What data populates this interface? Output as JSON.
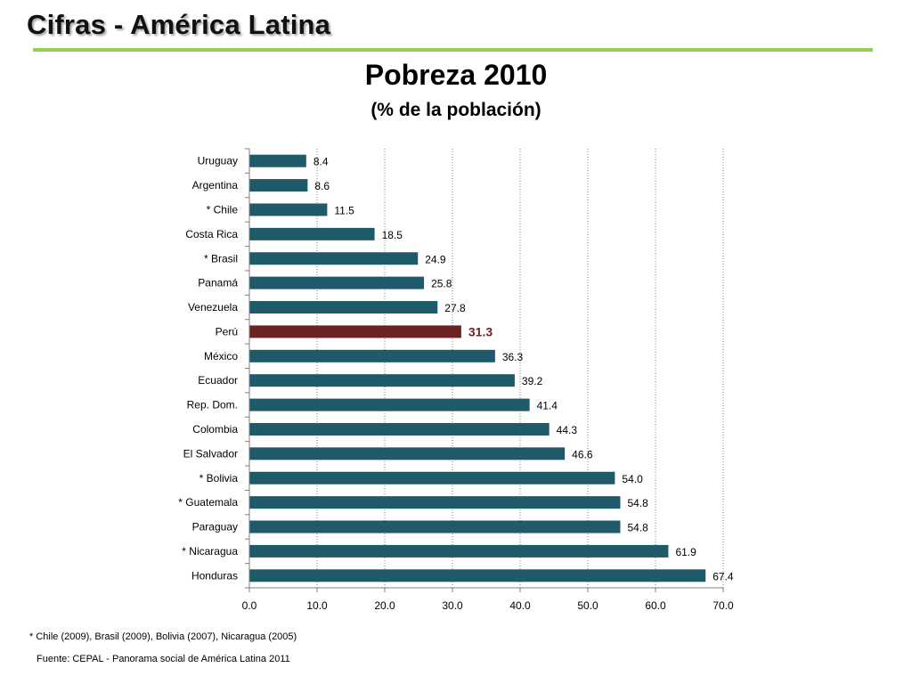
{
  "slide": {
    "title": "Cifras - América Latina"
  },
  "chart_data": {
    "type": "bar",
    "orientation": "horizontal",
    "title": "Pobreza 2010",
    "subtitle": "(% de la población)",
    "categories": [
      "Uruguay",
      "Argentina",
      "* Chile",
      "Costa Rica",
      "* Brasil",
      "Panamá",
      "Venezuela",
      "Perú",
      "México",
      "Ecuador",
      "Rep. Dom.",
      "Colombia",
      "El Salvador",
      "* Bolivia",
      "* Guatemala",
      "Paraguay",
      "* Nicaragua",
      "Honduras"
    ],
    "values": [
      8.4,
      8.6,
      11.5,
      18.5,
      24.9,
      25.8,
      27.8,
      31.3,
      36.3,
      39.2,
      41.4,
      44.3,
      46.6,
      54.0,
      54.8,
      54.8,
      61.9,
      67.4
    ],
    "value_labels": [
      "8.4",
      "8.6",
      "11.5",
      "18.5",
      "24.9",
      "25.8",
      "27.8",
      "31.3",
      "36.3",
      "39.2",
      "41.4",
      "44.3",
      "46.6",
      "54.0",
      "54.8",
      "54.8",
      "61.9",
      "67.4"
    ],
    "highlight_category": "Perú",
    "xlim": [
      0,
      70
    ],
    "x_ticks": [
      "0.0",
      "10.0",
      "20.0",
      "30.0",
      "40.0",
      "50.0",
      "60.0",
      "70.0"
    ],
    "gridlines": "vertical dotted",
    "colors": {
      "bar": "#1f5a6a",
      "highlight_bar": "#6b2222",
      "highlight_label": "#6b2222"
    }
  },
  "notes": {
    "footnote": "* Chile (2009), Brasil (2009), Bolivia (2007), Nicaragua (2005)",
    "source": "Fuente: CEPAL - Panorama social de América Latina 2011"
  }
}
